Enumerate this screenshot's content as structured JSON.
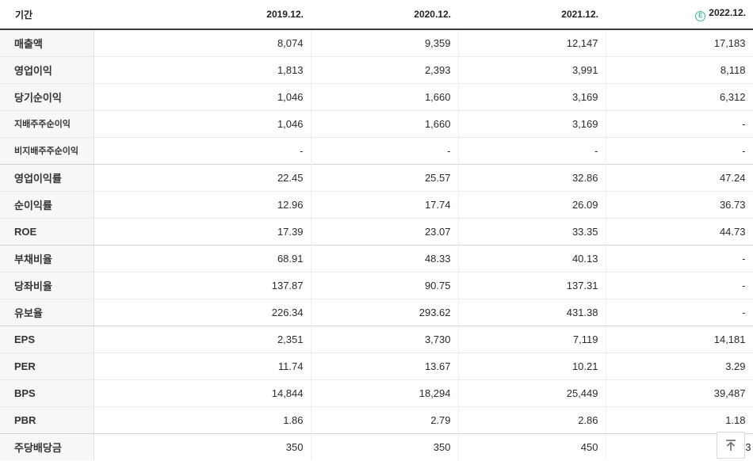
{
  "table": {
    "header": {
      "period_label": "기간",
      "columns": [
        "2019.12.",
        "2020.12.",
        "2021.12.",
        "2022.12."
      ],
      "estimate_badge": "E",
      "estimate_badge_color": "#35bd92",
      "estimate_column_index": 3
    },
    "rows": [
      {
        "label": "매출액",
        "values": [
          "8,074",
          "9,359",
          "12,147",
          "17,183"
        ]
      },
      {
        "label": "영업이익",
        "values": [
          "1,813",
          "2,393",
          "3,991",
          "8,118"
        ]
      },
      {
        "label": "당기순이익",
        "values": [
          "1,046",
          "1,660",
          "3,169",
          "6,312"
        ]
      },
      {
        "label": "지배주주순이익",
        "small_label": true,
        "values": [
          "1,046",
          "1,660",
          "3,169",
          "-"
        ]
      },
      {
        "label": "비지배주주순이익",
        "small_label": true,
        "values": [
          "-",
          "-",
          "-",
          "-"
        ]
      },
      {
        "label": "영업이익률",
        "group_start": true,
        "values": [
          "22.45",
          "25.57",
          "32.86",
          "47.24"
        ]
      },
      {
        "label": "순이익률",
        "values": [
          "12.96",
          "17.74",
          "26.09",
          "36.73"
        ]
      },
      {
        "label": "ROE",
        "values": [
          "17.39",
          "23.07",
          "33.35",
          "44.73"
        ]
      },
      {
        "label": "부채비율",
        "group_start": true,
        "values": [
          "68.91",
          "48.33",
          "40.13",
          "-"
        ]
      },
      {
        "label": "당좌비율",
        "values": [
          "137.87",
          "90.75",
          "137.31",
          "-"
        ]
      },
      {
        "label": "유보율",
        "values": [
          "226.34",
          "293.62",
          "431.38",
          "-"
        ]
      },
      {
        "label": "EPS",
        "group_start": true,
        "values": [
          "2,351",
          "3,730",
          "7,119",
          "14,181"
        ]
      },
      {
        "label": "PER",
        "values": [
          "11.74",
          "13.67",
          "10.21",
          "3.29"
        ]
      },
      {
        "label": "BPS",
        "values": [
          "14,844",
          "18,294",
          "25,449",
          "39,487"
        ]
      },
      {
        "label": "PBR",
        "values": [
          "1.86",
          "2.79",
          "2.86",
          "1.18"
        ]
      },
      {
        "label": "주당배당금",
        "group_start": true,
        "values": [
          "350",
          "350",
          "450",
          "3"
        ],
        "last_value_partially_obscured": true
      }
    ]
  },
  "scroll_top_button": {
    "name": "scroll-to-top",
    "icon": "arrow-up-to-bar"
  }
}
